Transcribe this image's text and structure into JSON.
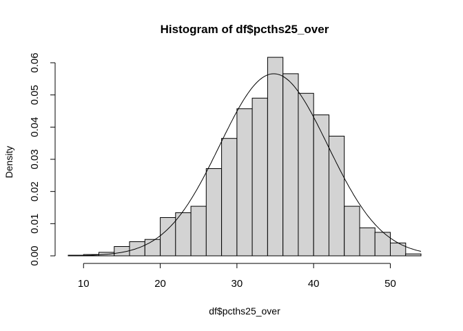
{
  "chart_data": {
    "type": "histogram",
    "title": "Histogram of df$pcths25_over",
    "xlabel": "df$pcths25_over",
    "ylabel": "Density",
    "xlim": [
      8,
      54
    ],
    "ylim": [
      0,
      0.06
    ],
    "x_ticks": [
      10,
      20,
      30,
      40,
      50
    ],
    "x_tick_labels": [
      "10",
      "20",
      "30",
      "40",
      "50"
    ],
    "y_ticks": [
      0,
      0.01,
      0.02,
      0.03,
      0.04,
      0.05,
      0.06
    ],
    "y_tick_labels": [
      "0.00",
      "0.01",
      "0.02",
      "0.03",
      "0.04",
      "0.05",
      "0.06"
    ],
    "bar_fill": "#d3d3d3",
    "bins": [
      {
        "x0": 8,
        "x1": 10,
        "density": 0.0002
      },
      {
        "x0": 10,
        "x1": 12,
        "density": 0.0004
      },
      {
        "x0": 12,
        "x1": 14,
        "density": 0.0011
      },
      {
        "x0": 14,
        "x1": 16,
        "density": 0.0029
      },
      {
        "x0": 16,
        "x1": 18,
        "density": 0.0044
      },
      {
        "x0": 18,
        "x1": 20,
        "density": 0.0051
      },
      {
        "x0": 20,
        "x1": 22,
        "density": 0.0119
      },
      {
        "x0": 22,
        "x1": 24,
        "density": 0.0134
      },
      {
        "x0": 24,
        "x1": 26,
        "density": 0.0154
      },
      {
        "x0": 26,
        "x1": 28,
        "density": 0.0271
      },
      {
        "x0": 28,
        "x1": 30,
        "density": 0.0365
      },
      {
        "x0": 30,
        "x1": 32,
        "density": 0.0457
      },
      {
        "x0": 32,
        "x1": 34,
        "density": 0.049
      },
      {
        "x0": 34,
        "x1": 36,
        "density": 0.0617
      },
      {
        "x0": 36,
        "x1": 38,
        "density": 0.0566
      },
      {
        "x0": 38,
        "x1": 40,
        "density": 0.0505
      },
      {
        "x0": 40,
        "x1": 42,
        "density": 0.0438
      },
      {
        "x0": 42,
        "x1": 44,
        "density": 0.0372
      },
      {
        "x0": 44,
        "x1": 46,
        "density": 0.0154
      },
      {
        "x0": 46,
        "x1": 48,
        "density": 0.0087
      },
      {
        "x0": 48,
        "x1": 50,
        "density": 0.0073
      },
      {
        "x0": 50,
        "x1": 52,
        "density": 0.004
      },
      {
        "x0": 52,
        "x1": 54,
        "density": 0.0006
      }
    ],
    "normal_curve": {
      "mean": 34.8,
      "sd": 7.05
    }
  }
}
